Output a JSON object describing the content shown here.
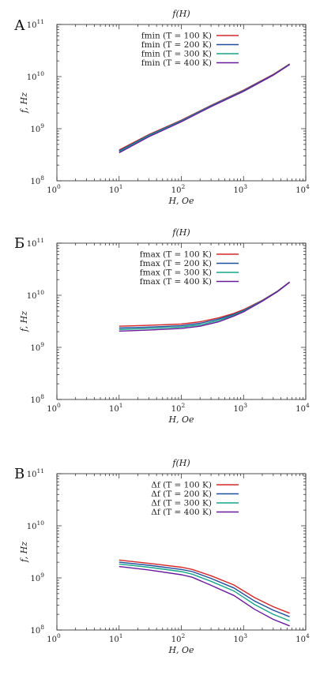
{
  "colors": {
    "T100": "#d62728",
    "T200": "#1f4e9c",
    "T300": "#17a589",
    "T400": "#6a1b9a"
  },
  "chart_data": [
    {
      "type": "line",
      "panel": "А",
      "title": "f(H)",
      "xlabel": "H,  Oe",
      "ylabel": "f,  Hz",
      "xscale": "log",
      "yscale": "log",
      "xlim": [
        1,
        10000
      ],
      "ylim": [
        100000000,
        100000000000
      ],
      "xticks": [
        "10^0",
        "10^1",
        "10^2",
        "10^3",
        "10^4"
      ],
      "yticks": [
        "10^8",
        "10^9",
        "10^10",
        "10^11"
      ],
      "legend_position": "top-center",
      "series": [
        {
          "name": "fmin (T = 100 K)",
          "color_key": "T100",
          "x": [
            10,
            30,
            100,
            300,
            1000,
            3000,
            5500
          ],
          "y": [
            390000000,
            770000000,
            1450000000,
            2800000000,
            5500000000,
            11000000000,
            17500000000
          ]
        },
        {
          "name": "fmin (T = 200 K)",
          "color_key": "T200",
          "x": [
            10,
            30,
            100,
            300,
            1000,
            3000,
            5500
          ],
          "y": [
            375000000,
            750000000,
            1420000000,
            2750000000,
            5400000000,
            10800000000,
            17300000000
          ]
        },
        {
          "name": "fmin (T = 300 K)",
          "color_key": "T300",
          "x": [
            10,
            30,
            100,
            300,
            1000,
            3000,
            5500
          ],
          "y": [
            360000000,
            730000000,
            1400000000,
            2700000000,
            5300000000,
            10700000000,
            17200000000
          ]
        },
        {
          "name": "fmin (T = 400 K)",
          "color_key": "T400",
          "x": [
            10,
            30,
            100,
            300,
            1000,
            3000,
            5500
          ],
          "y": [
            345000000,
            700000000,
            1360000000,
            2650000000,
            5200000000,
            10600000000,
            17000000000
          ]
        }
      ]
    },
    {
      "type": "line",
      "panel": "Б",
      "title": "f(H)",
      "xlabel": "H,  Oe",
      "ylabel": "f,  Hz",
      "xscale": "log",
      "yscale": "log",
      "xlim": [
        1,
        10000
      ],
      "ylim": [
        100000000,
        100000000000
      ],
      "xticks": [
        "10^0",
        "10^1",
        "10^2",
        "10^3",
        "10^4"
      ],
      "yticks": [
        "10^8",
        "10^9",
        "10^10",
        "10^11"
      ],
      "legend_position": "top-center",
      "series": [
        {
          "name": "fmax (T = 100 K)",
          "color_key": "T100",
          "x": [
            10,
            30,
            100,
            200,
            400,
            700,
            1000,
            2000,
            3500,
            5500
          ],
          "y": [
            2550000000,
            2650000000,
            2800000000,
            3100000000,
            3700000000,
            4500000000,
            5300000000,
            8000000000,
            12000000000,
            18000000000
          ]
        },
        {
          "name": "fmax (T = 200 K)",
          "color_key": "T200",
          "x": [
            10,
            30,
            100,
            200,
            400,
            700,
            1000,
            2000,
            3500,
            5500
          ],
          "y": [
            2350000000,
            2450000000,
            2600000000,
            2900000000,
            3500000000,
            4300000000,
            5100000000,
            7900000000,
            11900000000,
            17900000000
          ]
        },
        {
          "name": "fmax (T = 300 K)",
          "color_key": "T300",
          "x": [
            10,
            30,
            100,
            200,
            400,
            700,
            1000,
            2000,
            3500,
            5500
          ],
          "y": [
            2200000000,
            2300000000,
            2450000000,
            2700000000,
            3300000000,
            4150000000,
            5000000000,
            7800000000,
            11800000000,
            17800000000
          ]
        },
        {
          "name": "fmax (T = 400 K)",
          "color_key": "T400",
          "x": [
            10,
            30,
            100,
            200,
            400,
            700,
            1000,
            2000,
            3500,
            5500
          ],
          "y": [
            2050000000,
            2150000000,
            2300000000,
            2550000000,
            3100000000,
            4000000000,
            4800000000,
            7700000000,
            11700000000,
            17700000000
          ]
        }
      ]
    },
    {
      "type": "line",
      "panel": "В",
      "title": "f(H)",
      "xlabel": "H,  Oe",
      "ylabel": "f,  Hz",
      "xscale": "log",
      "yscale": "log",
      "xlim": [
        1,
        10000
      ],
      "ylim": [
        100000000,
        100000000000
      ],
      "xticks": [
        "10^0",
        "10^1",
        "10^2",
        "10^3",
        "10^4"
      ],
      "yticks": [
        "10^8",
        "10^9",
        "10^10",
        "10^11"
      ],
      "legend_position": "top-center",
      "series": [
        {
          "name": "Δf (T = 100 K)",
          "color_key": "T100",
          "x": [
            10,
            30,
            100,
            150,
            300,
            700,
            1500,
            3000,
            5500
          ],
          "y": [
            2200000000,
            1900000000,
            1600000000,
            1450000000,
            1100000000,
            730000000,
            420000000,
            280000000,
            210000000
          ]
        },
        {
          "name": "Δf (T = 200 K)",
          "color_key": "T200",
          "x": [
            10,
            30,
            100,
            150,
            300,
            700,
            1500,
            3000,
            5500
          ],
          "y": [
            2000000000,
            1750000000,
            1450000000,
            1320000000,
            980000000,
            640000000,
            360000000,
            240000000,
            180000000
          ]
        },
        {
          "name": "Δf (T = 300 K)",
          "color_key": "T300",
          "x": [
            10,
            30,
            100,
            150,
            300,
            700,
            1500,
            3000,
            5500
          ],
          "y": [
            1850000000,
            1600000000,
            1320000000,
            1180000000,
            860000000,
            560000000,
            310000000,
            200000000,
            150000000
          ]
        },
        {
          "name": "Δf (T = 400 K)",
          "color_key": "T400",
          "x": [
            10,
            30,
            100,
            150,
            300,
            700,
            1500,
            3000,
            5500
          ],
          "y": [
            1650000000,
            1420000000,
            1150000000,
            1030000000,
            720000000,
            460000000,
            250000000,
            160000000,
            120000000
          ]
        }
      ]
    }
  ]
}
